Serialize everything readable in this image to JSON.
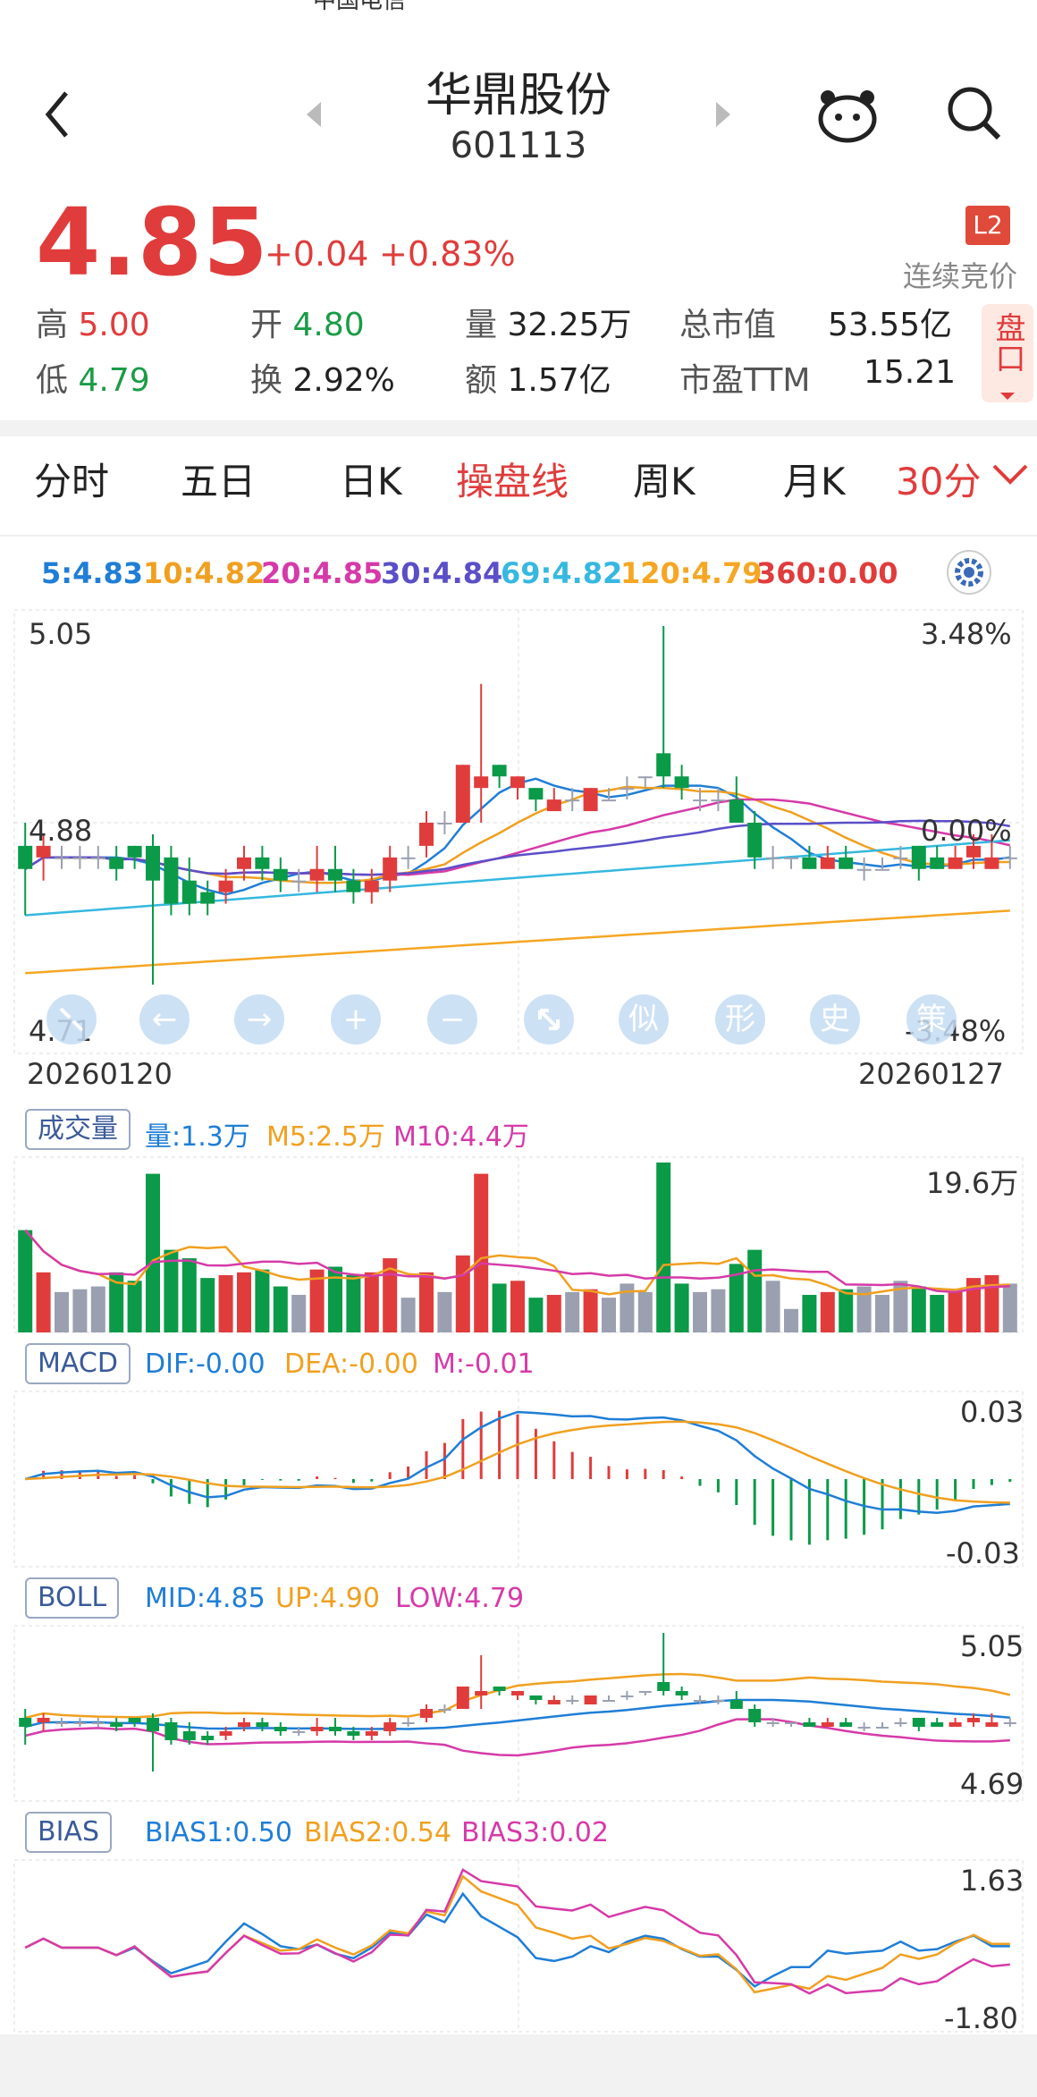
{
  "status_bar": {
    "carrier": "中国电信"
  },
  "header": {
    "name": "华鼎股份",
    "code": "601113"
  },
  "quote": {
    "price": "4.85",
    "change": "+0.04",
    "change_pct": "+0.83%",
    "l2_badge": "L2",
    "trading_status": "连续竞价",
    "high_label": "高",
    "high": "5.00",
    "open_label": "开",
    "open": "4.80",
    "volume_label": "量",
    "volume": "32.25万",
    "mcap_label": "总市值",
    "mcap": "53.55亿",
    "low_label": "低",
    "low": "4.79",
    "turnover_label": "换",
    "turnover": "2.92%",
    "amount_label": "额",
    "amount": "1.57亿",
    "pe_label": "市盈TTM",
    "pe": "15.21",
    "pankou": "盘口"
  },
  "tabs": [
    "分时",
    "五日",
    "日K",
    "操盘线",
    "周K",
    "月K",
    "30分"
  ],
  "active_tab": "操盘线",
  "ma_legend": [
    {
      "text": "5:4.83",
      "color": "#1f7ed6"
    },
    {
      "text": "10:4.82",
      "color": "#f0a020"
    },
    {
      "text": "20:4.85",
      "color": "#d63aa8"
    },
    {
      "text": "30:4.84",
      "color": "#5a4fc8"
    },
    {
      "text": "69:4.82",
      "color": "#36b8e0"
    },
    {
      "text": "120:4.79",
      "color": "#f5a623"
    },
    {
      "text": "360:0.00",
      "color": "#e03c3c"
    }
  ],
  "main_axis": {
    "top": "5.05",
    "mid": "4.88",
    "bottom": "4.71",
    "top_pct": "3.48%",
    "mid_pct": "0.00%",
    "bottom_pct": "-3.48%",
    "date_start": "20260120",
    "date_end": "20260127"
  },
  "nav_buttons": [
    "←",
    "→",
    "+",
    "−",
    "似",
    "形",
    "史",
    "策"
  ],
  "volume_panel": {
    "label": "成交量",
    "vol": "量:1.3万",
    "m5": "M5:2.5万",
    "m10": "M10:4.4万",
    "max": "19.6万"
  },
  "macd_panel": {
    "label": "MACD",
    "dif": "DIF:-0.00",
    "dea": "DEA:-0.00",
    "m": "M:-0.01",
    "top": "0.03",
    "bottom": "-0.03"
  },
  "boll_panel": {
    "label": "BOLL",
    "mid": "MID:4.85",
    "up": "UP:4.90",
    "low": "LOW:4.79",
    "top": "5.05",
    "bottom": "4.69"
  },
  "bias_panel": {
    "label": "BIAS",
    "b1": "BIAS1:0.50",
    "b2": "BIAS2:0.54",
    "b3": "BIAS3:0.02",
    "top": "1.63",
    "bottom": "-1.80"
  },
  "candles": [
    [
      4.86,
      4.84,
      4.88,
      4.8
    ],
    [
      4.85,
      4.86,
      4.87,
      4.83
    ],
    [
      4.85,
      4.85,
      4.86,
      4.84
    ],
    [
      4.85,
      4.85,
      4.86,
      4.84
    ],
    [
      4.85,
      4.85,
      4.86,
      4.84
    ],
    [
      4.85,
      4.84,
      4.86,
      4.83
    ],
    [
      4.86,
      4.85,
      4.86,
      4.84
    ],
    [
      4.86,
      4.83,
      4.87,
      4.74
    ],
    [
      4.85,
      4.81,
      4.86,
      4.8
    ],
    [
      4.83,
      4.81,
      4.85,
      4.8
    ],
    [
      4.82,
      4.81,
      4.83,
      4.8
    ],
    [
      4.82,
      4.83,
      4.84,
      4.81
    ],
    [
      4.84,
      4.85,
      4.86,
      4.83
    ],
    [
      4.85,
      4.84,
      4.86,
      4.83
    ],
    [
      4.84,
      4.83,
      4.85,
      4.82
    ],
    [
      4.83,
      4.83,
      4.84,
      4.82
    ],
    [
      4.83,
      4.84,
      4.86,
      4.82
    ],
    [
      4.84,
      4.83,
      4.86,
      4.82
    ],
    [
      4.83,
      4.82,
      4.84,
      4.81
    ],
    [
      4.82,
      4.83,
      4.84,
      4.81
    ],
    [
      4.83,
      4.85,
      4.86,
      4.82
    ],
    [
      4.85,
      4.85,
      4.86,
      4.84
    ],
    [
      4.86,
      4.88,
      4.89,
      4.85
    ],
    [
      4.88,
      4.88,
      4.89,
      4.87
    ],
    [
      4.88,
      4.93,
      4.93,
      4.88
    ],
    [
      4.91,
      4.92,
      5.0,
      4.88
    ],
    [
      4.93,
      4.92,
      4.93,
      4.91
    ],
    [
      4.91,
      4.92,
      4.92,
      4.9
    ],
    [
      4.91,
      4.9,
      4.91,
      4.89
    ],
    [
      4.89,
      4.9,
      4.91,
      4.89
    ],
    [
      4.9,
      4.9,
      4.91,
      4.89
    ],
    [
      4.89,
      4.91,
      4.91,
      4.89
    ],
    [
      4.9,
      4.9,
      4.91,
      4.9
    ],
    [
      4.91,
      4.91,
      4.92,
      4.9
    ],
    [
      4.92,
      4.92,
      4.92,
      4.91
    ],
    [
      4.94,
      4.92,
      5.05,
      4.91
    ],
    [
      4.92,
      4.91,
      4.93,
      4.9
    ],
    [
      4.9,
      4.9,
      4.91,
      4.89
    ],
    [
      4.9,
      4.9,
      4.91,
      4.89
    ],
    [
      4.9,
      4.88,
      4.92,
      4.88
    ],
    [
      4.88,
      4.85,
      4.89,
      4.84
    ],
    [
      4.85,
      4.85,
      4.86,
      4.84
    ],
    [
      4.85,
      4.85,
      4.85,
      4.84
    ],
    [
      4.85,
      4.84,
      4.86,
      4.84
    ],
    [
      4.84,
      4.85,
      4.86,
      4.84
    ],
    [
      4.85,
      4.84,
      4.86,
      4.84
    ],
    [
      4.84,
      4.84,
      4.85,
      4.83
    ],
    [
      4.84,
      4.84,
      4.85,
      4.84
    ],
    [
      4.85,
      4.85,
      4.86,
      4.84
    ],
    [
      4.86,
      4.84,
      4.86,
      4.83
    ],
    [
      4.85,
      4.84,
      4.86,
      4.84
    ],
    [
      4.84,
      4.85,
      4.86,
      4.84
    ],
    [
      4.85,
      4.86,
      4.87,
      4.84
    ],
    [
      4.84,
      4.85,
      4.87,
      4.84
    ],
    [
      4.85,
      4.85,
      4.86,
      4.84
    ]
  ]
}
